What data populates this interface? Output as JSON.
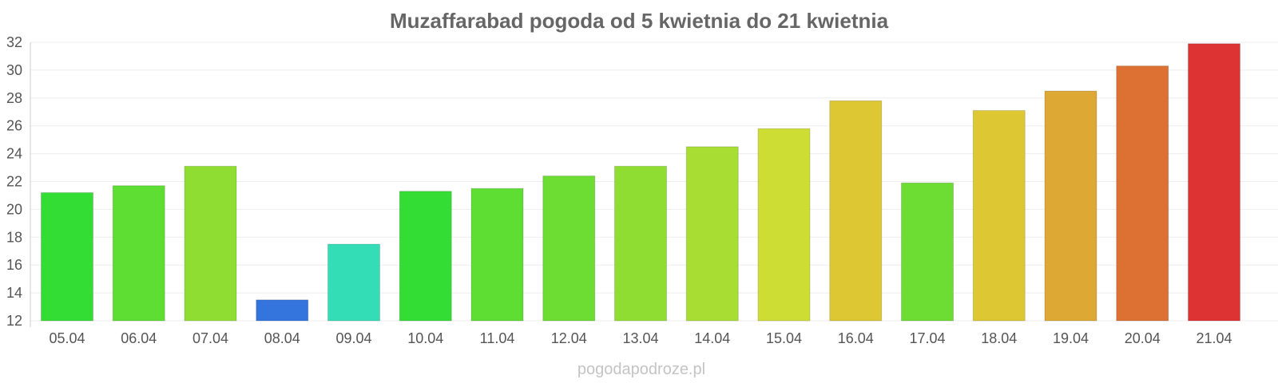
{
  "chart_data": {
    "type": "bar",
    "title": "Muzaffarabad pogoda od 5 kwietnia do 21 kwietnia",
    "xlabel": "",
    "ylabel": "",
    "ylim": [
      12,
      32
    ],
    "yticks": [
      "12",
      "14",
      "16",
      "18",
      "20",
      "22",
      "24",
      "26",
      "28",
      "30",
      "32"
    ],
    "grid": true,
    "categories": [
      "05.04",
      "06.04",
      "07.04",
      "08.04",
      "09.04",
      "10.04",
      "11.04",
      "12.04",
      "13.04",
      "14.04",
      "15.04",
      "16.04",
      "17.04",
      "18.04",
      "19.04",
      "20.04",
      "21.04"
    ],
    "values": [
      21.2,
      21.7,
      23.1,
      13.5,
      17.5,
      21.3,
      21.5,
      22.4,
      23.1,
      24.5,
      25.8,
      27.8,
      21.9,
      27.1,
      28.5,
      30.3,
      31.9
    ],
    "colors": [
      "#33dd33",
      "#5edd33",
      "#8fdd33",
      "#3374dd",
      "#33ddb5",
      "#33dd33",
      "#5edd33",
      "#6ddd33",
      "#8fdd33",
      "#a8dd33",
      "#cddd33",
      "#ddc733",
      "#6ddd33",
      "#ddc733",
      "#dda833",
      "#dd7033",
      "#dd3333"
    ]
  },
  "watermark": "pogodapodroze.pl"
}
